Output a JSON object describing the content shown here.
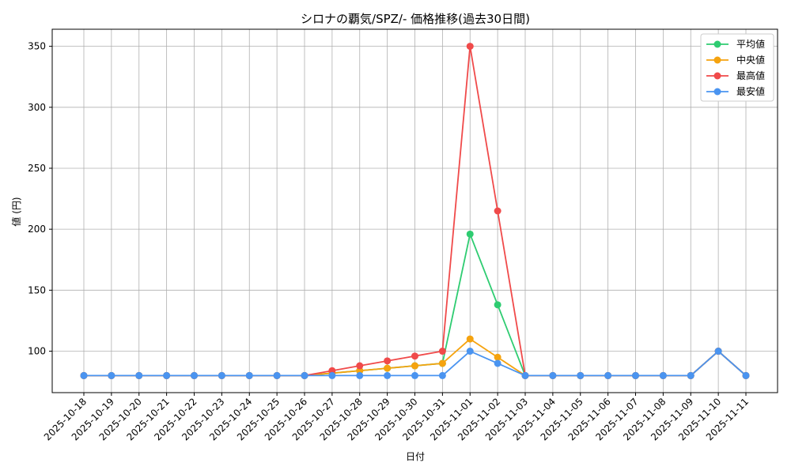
{
  "chart_data": {
    "type": "line",
    "title": "シロナの覇気/SPZ/- 価格推移(過去30日間)",
    "xlabel": "日付",
    "ylabel": "値 (円)",
    "ylim": [
      66,
      364
    ],
    "yticks": [
      100,
      150,
      200,
      250,
      300,
      350
    ],
    "grid": true,
    "legend_position": "top-right",
    "categories": [
      "2025-10-18",
      "2025-10-19",
      "2025-10-20",
      "2025-10-21",
      "2025-10-22",
      "2025-10-23",
      "2025-10-24",
      "2025-10-25",
      "2025-10-26",
      "2025-10-27",
      "2025-10-28",
      "2025-10-29",
      "2025-10-30",
      "2025-10-31",
      "2025-11-01",
      "2025-11-02",
      "2025-11-03",
      "2025-11-04",
      "2025-11-05",
      "2025-11-06",
      "2025-11-07",
      "2025-11-08",
      "2025-11-09",
      "2025-11-10",
      "2025-11-11"
    ],
    "series": [
      {
        "name": "平均値",
        "color": "#2ecc71",
        "values": [
          80,
          80,
          80,
          80,
          80,
          80,
          80,
          80,
          80,
          82,
          84,
          86,
          88,
          90,
          196,
          138,
          80,
          80,
          80,
          80,
          80,
          80,
          80,
          100,
          80
        ]
      },
      {
        "name": "中央値",
        "color": "#f5a30f",
        "values": [
          80,
          80,
          80,
          80,
          80,
          80,
          80,
          80,
          80,
          82,
          84,
          86,
          88,
          90,
          110,
          95,
          80,
          80,
          80,
          80,
          80,
          80,
          80,
          100,
          80
        ]
      },
      {
        "name": "最高値",
        "color": "#f04a4a",
        "values": [
          80,
          80,
          80,
          80,
          80,
          80,
          80,
          80,
          80,
          84,
          88,
          92,
          96,
          100,
          350,
          215,
          80,
          80,
          80,
          80,
          80,
          80,
          80,
          100,
          80
        ]
      },
      {
        "name": "最安値",
        "color": "#4a94f0",
        "values": [
          80,
          80,
          80,
          80,
          80,
          80,
          80,
          80,
          80,
          80,
          80,
          80,
          80,
          80,
          100,
          90,
          80,
          80,
          80,
          80,
          80,
          80,
          80,
          100,
          80
        ]
      }
    ]
  }
}
